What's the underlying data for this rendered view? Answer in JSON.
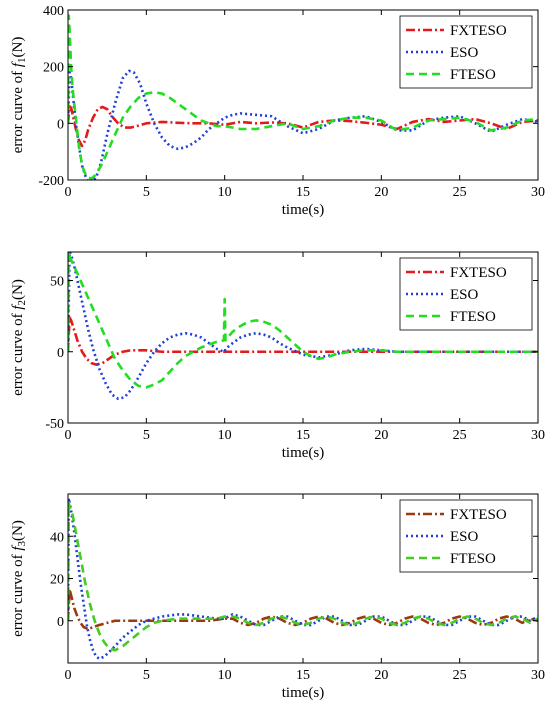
{
  "chart_data": [
    {
      "type": "line",
      "ylabel_prefix": "error curve of ",
      "ylabel_var": "f",
      "ylabel_sub": "1",
      "ylabel_suffix": "(N)",
      "xlabel": "time(s)",
      "xlim": [
        0,
        30
      ],
      "ylim": [
        -200,
        400
      ],
      "xticks": [
        0,
        5,
        10,
        15,
        20,
        25,
        30
      ],
      "yticks": [
        -200,
        0,
        200,
        400
      ],
      "grid": false,
      "legend": "top-right",
      "series": [
        {
          "name": "FXTESO",
          "color": "#e31a1c",
          "dash": "9,3,2,3",
          "x": [
            0,
            0.1,
            0.2,
            0.3,
            0.5,
            0.7,
            0.9,
            1.1,
            1.3,
            1.6,
            1.9,
            2.2,
            2.5,
            2.8,
            3.2,
            3.6,
            4.0,
            4.5,
            5,
            6,
            7,
            8,
            9,
            10,
            11,
            12,
            13,
            14,
            15,
            16,
            17,
            18,
            19,
            20,
            21,
            22,
            23,
            24,
            25,
            26,
            27,
            28,
            29,
            30
          ],
          "y": [
            0,
            60,
            55,
            30,
            -20,
            -60,
            -80,
            -60,
            -20,
            20,
            50,
            58,
            50,
            25,
            0,
            -15,
            -15,
            -8,
            0,
            5,
            2,
            0,
            0,
            -5,
            5,
            0,
            3,
            0,
            -15,
            5,
            10,
            8,
            2,
            -5,
            -20,
            5,
            15,
            5,
            10,
            15,
            0,
            -20,
            5,
            10
          ]
        },
        {
          "name": "ESO",
          "color": "#1f3fd8",
          "dash": "2,3",
          "x": [
            0,
            0.1,
            0.2,
            0.35,
            0.5,
            0.7,
            0.9,
            1.2,
            1.5,
            1.8,
            2.1,
            2.5,
            3.0,
            3.5,
            3.9,
            4.2,
            4.6,
            5.0,
            5.5,
            6.0,
            6.5,
            7.0,
            7.5,
            8.0,
            8.5,
            9.0,
            9.5,
            10.0,
            10.5,
            11,
            12,
            13,
            14,
            15,
            16,
            17,
            18,
            19,
            20,
            21,
            22,
            23,
            24,
            25,
            26,
            27,
            28,
            29,
            30
          ],
          "y": [
            0,
            180,
            160,
            80,
            0,
            -80,
            -150,
            -200,
            -210,
            -190,
            -140,
            -40,
            70,
            160,
            185,
            180,
            140,
            70,
            0,
            -50,
            -80,
            -90,
            -85,
            -70,
            -50,
            -20,
            0,
            20,
            30,
            35,
            30,
            25,
            -10,
            -35,
            -20,
            10,
            20,
            25,
            5,
            -25,
            -25,
            10,
            20,
            25,
            0,
            -30,
            -5,
            15,
            5
          ]
        },
        {
          "name": "FTESO",
          "color": "#22dd22",
          "dash": "8,5",
          "x": [
            0,
            0.05,
            0.1,
            0.2,
            0.3,
            0.5,
            0.7,
            0.9,
            1.2,
            1.5,
            1.8,
            2.2,
            2.6,
            3.0,
            3.5,
            4.0,
            4.5,
            5.0,
            5.5,
            6.0,
            6.5,
            7.0,
            7.5,
            8.0,
            8.5,
            9.0,
            9.5,
            10,
            11,
            12,
            13,
            14,
            15,
            16,
            17,
            18,
            19,
            20,
            21,
            22,
            23,
            24,
            25,
            26,
            27,
            28,
            29,
            30
          ],
          "y": [
            0,
            380,
            330,
            200,
            120,
            20,
            -80,
            -150,
            -190,
            -195,
            -180,
            -140,
            -90,
            -40,
            20,
            60,
            90,
            105,
            110,
            105,
            90,
            70,
            50,
            30,
            10,
            0,
            -10,
            -10,
            -20,
            -20,
            -10,
            0,
            -20,
            -10,
            10,
            20,
            20,
            10,
            -25,
            -15,
            10,
            15,
            20,
            5,
            -25,
            -15,
            10,
            15
          ]
        }
      ]
    },
    {
      "type": "line",
      "ylabel_prefix": "error curve of ",
      "ylabel_var": "f",
      "ylabel_sub": "2",
      "ylabel_suffix": "(N)",
      "xlabel": "time(s)",
      "xlim": [
        0,
        30
      ],
      "ylim": [
        -50,
        70
      ],
      "xticks": [
        0,
        5,
        10,
        15,
        20,
        25,
        30
      ],
      "yticks": [
        -50,
        0,
        50
      ],
      "grid": false,
      "legend": "top-right",
      "series": [
        {
          "name": "FXTESO",
          "color": "#e31a1c",
          "dash": "9,3,2,3",
          "x": [
            0,
            0.1,
            0.2,
            0.4,
            0.6,
            0.9,
            1.2,
            1.5,
            1.8,
            2.2,
            2.6,
            3.0,
            3.5,
            4.0,
            4.5,
            5,
            6,
            7,
            8,
            9,
            10,
            11,
            12,
            13,
            14,
            15,
            16,
            17,
            18,
            19,
            20,
            21,
            22,
            23,
            24,
            25,
            26,
            27,
            28,
            29,
            30
          ],
          "y": [
            0,
            24,
            22,
            15,
            8,
            0,
            -5,
            -8,
            -9,
            -8,
            -5,
            -2,
            0,
            1,
            1,
            1,
            0,
            0,
            0,
            0,
            0,
            0,
            0,
            0,
            0,
            0,
            0,
            0,
            0,
            0,
            0,
            0,
            0,
            0,
            0,
            0,
            0,
            0,
            0,
            0,
            0
          ]
        },
        {
          "name": "ESO",
          "color": "#1f3fd8",
          "dash": "2,3",
          "x": [
            0,
            0.1,
            0.2,
            0.4,
            0.7,
            1.0,
            1.3,
            1.6,
            2.0,
            2.4,
            2.8,
            3.2,
            3.6,
            4.0,
            4.5,
            5.0,
            5.5,
            6.0,
            6.5,
            7.0,
            7.5,
            8.0,
            8.5,
            9.0,
            9.5,
            9.95,
            10.0,
            10.05,
            10.5,
            11,
            11.5,
            12,
            12.5,
            13,
            13.5,
            14,
            15,
            16,
            17,
            18,
            19,
            20,
            21,
            22,
            23,
            24,
            25,
            26,
            27,
            28,
            29,
            30
          ],
          "y": [
            0,
            70,
            68,
            60,
            45,
            30,
            15,
            2,
            -12,
            -22,
            -30,
            -33,
            -32,
            -27,
            -18,
            -8,
            0,
            6,
            10,
            12,
            13,
            12,
            10,
            6,
            2,
            0,
            0,
            2,
            6,
            10,
            12,
            13,
            12,
            10,
            6,
            3,
            -2,
            -4,
            -2,
            1,
            2,
            1,
            0,
            0,
            0,
            0,
            0,
            0,
            0,
            0,
            0,
            0
          ]
        },
        {
          "name": "FTESO",
          "color": "#22dd22",
          "dash": "8,5",
          "x": [
            0,
            0.05,
            0.1,
            0.3,
            0.6,
            1.0,
            1.4,
            1.8,
            2.2,
            2.6,
            3.0,
            3.5,
            4.0,
            4.5,
            5.0,
            5.5,
            6.0,
            6.5,
            7.0,
            7.5,
            8.0,
            8.5,
            9.0,
            9.5,
            9.95,
            10.0,
            10.05,
            10.5,
            11,
            11.5,
            12,
            12.5,
            13,
            13.5,
            14,
            14.5,
            15,
            15.5,
            16,
            16.5,
            17,
            18,
            19,
            20,
            21,
            22,
            23,
            24,
            25,
            26,
            27,
            28,
            29,
            30
          ],
          "y": [
            0,
            70,
            67,
            62,
            55,
            45,
            35,
            25,
            15,
            5,
            -5,
            -13,
            -20,
            -24,
            -25,
            -23,
            -20,
            -14,
            -8,
            -3,
            0,
            3,
            5,
            7,
            8,
            37,
            8,
            14,
            18,
            21,
            22,
            21,
            19,
            15,
            10,
            5,
            0,
            -3,
            -5,
            -4,
            -2,
            0,
            1,
            1,
            0,
            0,
            0,
            0,
            0,
            0,
            0,
            0,
            0,
            0
          ]
        }
      ]
    },
    {
      "type": "line",
      "ylabel_prefix": "error curve of ",
      "ylabel_var": "f",
      "ylabel_sub": "3",
      "ylabel_suffix": "(N)",
      "xlabel": "time(s)",
      "xlim": [
        0,
        30
      ],
      "ylim": [
        -20,
        60
      ],
      "xticks": [
        0,
        5,
        10,
        15,
        20,
        25,
        30
      ],
      "yticks": [
        0,
        20,
        40
      ],
      "grid": false,
      "legend": "top-right",
      "series": [
        {
          "name": "FXTESO",
          "color": "#9b3a10",
          "dash": "9,3,2,3",
          "x": [
            0,
            0.1,
            0.2,
            0.4,
            0.6,
            0.8,
            1.0,
            1.3,
            1.6,
            2.0,
            2.5,
            3.0,
            4,
            5,
            6,
            7,
            8,
            9,
            10,
            10.5,
            11,
            11.5,
            12,
            12.5,
            13,
            13.5,
            14,
            14.5,
            15,
            15.5,
            16,
            16.5,
            17,
            17.5,
            18,
            18.5,
            19,
            19.5,
            20,
            20.5,
            21,
            21.5,
            22,
            22.5,
            23,
            23.5,
            24,
            24.5,
            25,
            25.5,
            26,
            26.5,
            27,
            27.5,
            28,
            28.5,
            29,
            29.5,
            30
          ],
          "y": [
            0,
            15,
            12,
            6,
            2,
            -1,
            -3,
            -4,
            -3,
            -2,
            -1,
            0,
            0,
            0,
            0,
            0,
            0,
            0,
            1,
            1,
            -1,
            -2,
            -1,
            1,
            2,
            1,
            -1,
            -2,
            -1,
            1,
            2,
            1,
            -1,
            -2,
            -1,
            1,
            2,
            1,
            -1,
            -2,
            -1,
            1,
            2,
            1,
            -1,
            -2,
            -1,
            1,
            2,
            1,
            -1,
            -2,
            -1,
            1,
            2,
            1,
            -1,
            1,
            0
          ]
        },
        {
          "name": "ESO",
          "color": "#1f3fd8",
          "dash": "2,3",
          "x": [
            0,
            0.05,
            0.1,
            0.2,
            0.4,
            0.6,
            0.8,
            1.0,
            1.2,
            1.4,
            1.6,
            1.8,
            2.0,
            2.3,
            2.6,
            3.0,
            3.5,
            4.0,
            4.5,
            5.0,
            5.5,
            6,
            6.5,
            7,
            7.5,
            8,
            8.5,
            9,
            9.5,
            10,
            10.5,
            11,
            11.5,
            12,
            12.5,
            13,
            13.5,
            14,
            14.5,
            15,
            15.5,
            16,
            16.5,
            17,
            17.5,
            18,
            18.5,
            19,
            19.5,
            20,
            20.5,
            21,
            21.5,
            22,
            22.5,
            23,
            23.5,
            24,
            24.5,
            25,
            25.5,
            26,
            26.5,
            27,
            27.5,
            28,
            28.5,
            29,
            29.5,
            30
          ],
          "y": [
            0,
            58,
            56,
            52,
            42,
            30,
            18,
            8,
            -2,
            -9,
            -14,
            -17,
            -18,
            -17,
            -15,
            -12,
            -8,
            -5,
            -2,
            0,
            1,
            2,
            2.5,
            3,
            3,
            2.5,
            2,
            1.5,
            1,
            1,
            3,
            2,
            0,
            -2,
            -2,
            0,
            2,
            2,
            0,
            -2,
            -2,
            0,
            2,
            2,
            0,
            -2,
            -2,
            0,
            2,
            2,
            0,
            -2,
            -2,
            0,
            2,
            2,
            0,
            -2,
            -2,
            0,
            2,
            2,
            0,
            -2,
            -2,
            0,
            2,
            2,
            0,
            2
          ]
        },
        {
          "name": "FTESO",
          "color": "#44cc22",
          "dash": "8,5",
          "x": [
            0,
            0.05,
            0.1,
            0.3,
            0.5,
            0.8,
            1.1,
            1.4,
            1.7,
            2.0,
            2.3,
            2.6,
            3.0,
            3.5,
            4.0,
            4.5,
            5.0,
            5.5,
            6,
            6.5,
            7,
            7.5,
            8,
            8.5,
            9,
            9.5,
            10,
            10.5,
            11,
            11.5,
            12,
            12.5,
            13,
            13.5,
            14,
            14.5,
            15,
            15.5,
            16,
            16.5,
            17,
            17.5,
            18,
            18.5,
            19,
            19.5,
            20,
            20.5,
            21,
            21.5,
            22,
            22.5,
            23,
            23.5,
            24,
            24.5,
            25,
            25.5,
            26,
            26.5,
            27,
            27.5,
            28,
            28.5,
            29,
            29.5,
            30
          ],
          "y": [
            0,
            56,
            54,
            50,
            42,
            30,
            18,
            8,
            0,
            -6,
            -10,
            -13,
            -14,
            -12,
            -9,
            -6,
            -3,
            -1,
            0,
            0.5,
            1,
            1,
            1,
            1,
            1,
            1,
            2,
            2,
            1,
            -1,
            -2,
            -1,
            1,
            2,
            1,
            -1,
            -2,
            -1,
            1,
            2,
            1,
            -1,
            -2,
            -1,
            1,
            2,
            1,
            -1,
            -2,
            -1,
            1,
            2,
            1,
            -1,
            -2,
            -1,
            1,
            2,
            1,
            -1,
            -2,
            -1,
            1,
            2,
            1,
            -1,
            1
          ]
        }
      ]
    }
  ]
}
